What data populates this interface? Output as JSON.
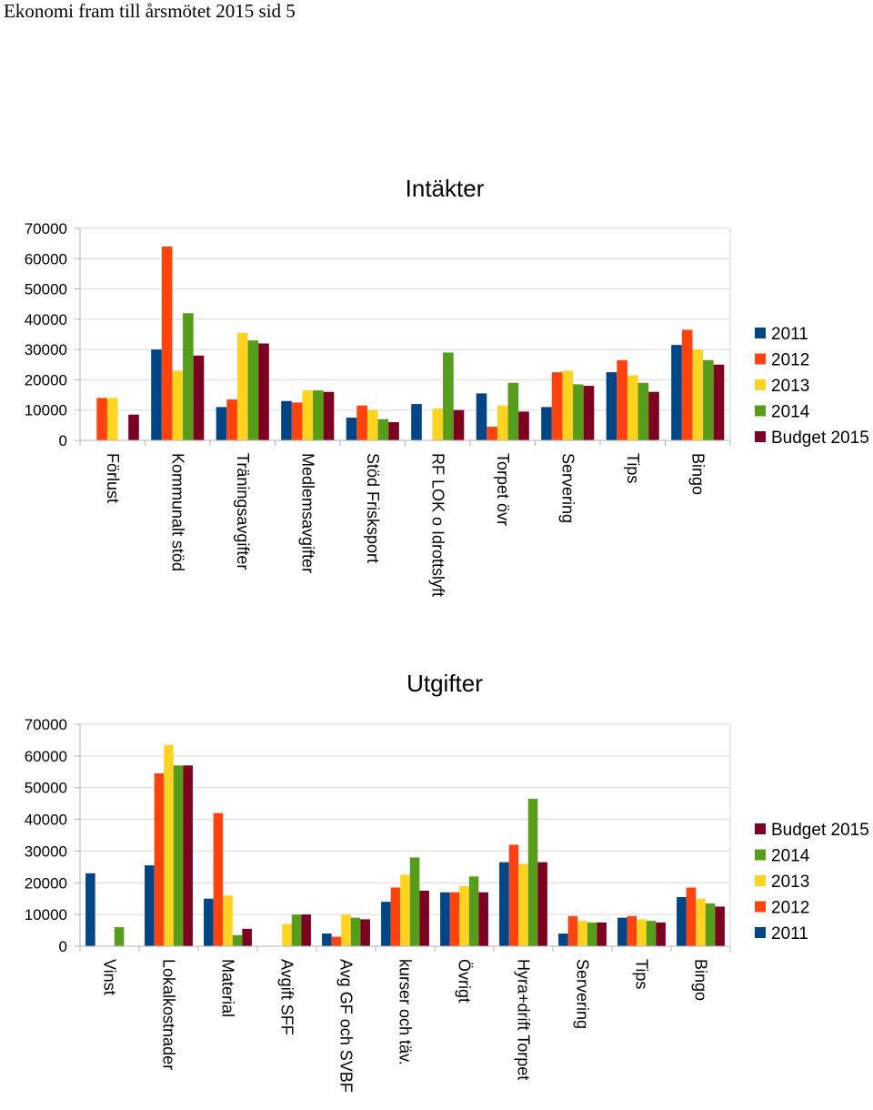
{
  "header": {
    "title": "Ekonomi fram till årsmötet 2015 sid 5"
  },
  "colors": {
    "2011": "#004586",
    "2012": "#ff420e",
    "2013": "#ffd320",
    "2014": "#579d1c",
    "Budget 2015": "#7e0021",
    "grid": "#d9d9d9",
    "axis": "#b3b3b3"
  },
  "chart_data": [
    {
      "type": "bar",
      "title": "Intäkter",
      "categories": [
        "Förlust",
        "Kommunalt stöd",
        "Träningsavgifter",
        "Medlemsavgifter",
        "Stöd Frisksport",
        "RF LOK o Idrottslyft",
        "Torpet övr",
        "Servering",
        "Tips",
        "Bingo"
      ],
      "series": [
        {
          "name": "2011",
          "values": [
            0,
            30000,
            11000,
            13000,
            7500,
            12000,
            15500,
            11000,
            22500,
            31500
          ]
        },
        {
          "name": "2012",
          "values": [
            14000,
            64000,
            13500,
            12500,
            11500,
            0,
            4500,
            22500,
            26500,
            36500
          ]
        },
        {
          "name": "2013",
          "values": [
            14000,
            23000,
            35500,
            16500,
            10000,
            10500,
            11500,
            23000,
            21500,
            30000
          ]
        },
        {
          "name": "2014",
          "values": [
            0,
            42000,
            33000,
            16500,
            7000,
            29000,
            19000,
            18500,
            19000,
            26500
          ]
        },
        {
          "name": "Budget 2015",
          "values": [
            8500,
            28000,
            32000,
            16000,
            6000,
            10000,
            9500,
            18000,
            16000,
            25000
          ]
        }
      ],
      "legend": [
        "2011",
        "2012",
        "2013",
        "2014",
        "Budget 2015"
      ],
      "legend_position": "right",
      "yticks": [
        "0",
        "10000",
        "20000",
        "30000",
        "40000",
        "50000",
        "60000",
        "70000"
      ],
      "ylim": [
        0,
        70000
      ],
      "xlabel": "",
      "ylabel": ""
    },
    {
      "type": "bar",
      "title": "Utgifter",
      "categories": [
        "Vinst",
        "Lokalkostnader",
        "Material",
        "Avgift SFF",
        "Avg GF och SVBF",
        "kurser och täv.",
        "Övrigt",
        "Hyra+drift Torpet",
        "Servering",
        "Tips",
        "Bingo"
      ],
      "series": [
        {
          "name": "2011",
          "values": [
            23000,
            25500,
            15000,
            0,
            4000,
            14000,
            17000,
            26500,
            4000,
            9000,
            15500
          ]
        },
        {
          "name": "2012",
          "values": [
            0,
            54500,
            42000,
            0,
            3000,
            18500,
            17000,
            32000,
            9500,
            9500,
            18500
          ]
        },
        {
          "name": "2013",
          "values": [
            0,
            63500,
            16000,
            7000,
            10000,
            22500,
            19000,
            26000,
            8000,
            8500,
            15000
          ]
        },
        {
          "name": "2014",
          "values": [
            6000,
            57000,
            3500,
            10000,
            9000,
            28000,
            22000,
            46500,
            7500,
            8000,
            13500
          ]
        },
        {
          "name": "Budget 2015",
          "values": [
            0,
            57000,
            5500,
            10000,
            8500,
            17500,
            17000,
            26500,
            7500,
            7500,
            12500
          ]
        }
      ],
      "legend": [
        "Budget 2015",
        "2014",
        "2013",
        "2012",
        "2011"
      ],
      "legend_position": "right",
      "yticks": [
        "0",
        "10000",
        "20000",
        "30000",
        "40000",
        "50000",
        "60000",
        "70000"
      ],
      "ylim": [
        0,
        70000
      ],
      "xlabel": "",
      "ylabel": ""
    }
  ]
}
